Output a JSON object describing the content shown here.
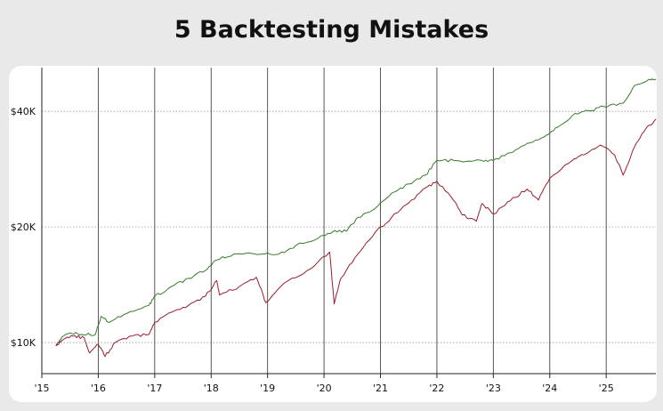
{
  "chart_data": {
    "type": "line",
    "title": "5 Backtesting Mistakes",
    "xlabel": "",
    "ylabel": "",
    "y_scale": "log",
    "ylim": [
      8300,
      52000
    ],
    "xlim": [
      2015.0,
      2025.88
    ],
    "y_ticks": [
      {
        "value": 10000,
        "label": "$10K"
      },
      {
        "value": 20000,
        "label": "$20K"
      },
      {
        "value": 40000,
        "label": "$40K"
      }
    ],
    "x_ticks": [
      {
        "value": 2015.0,
        "label": "'15"
      },
      {
        "value": 2016.0,
        "label": "'16"
      },
      {
        "value": 2017.0,
        "label": "'17"
      },
      {
        "value": 2018.0,
        "label": "'18"
      },
      {
        "value": 2019.0,
        "label": "'19"
      },
      {
        "value": 2020.0,
        "label": "'20"
      },
      {
        "value": 2021.0,
        "label": "'21"
      },
      {
        "value": 2022.0,
        "label": "'22"
      },
      {
        "value": 2023.0,
        "label": "'23"
      },
      {
        "value": 2024.0,
        "label": "'24"
      },
      {
        "value": 2025.0,
        "label": "'25"
      }
    ],
    "grid": {
      "vertical": true,
      "horizontal_dotted": true
    },
    "legend": "none",
    "series": [
      {
        "color": "#3a7a2a",
        "points": [
          [
            2015.25,
            9800
          ],
          [
            2015.35,
            10300
          ],
          [
            2015.5,
            10600
          ],
          [
            2015.7,
            10500
          ],
          [
            2015.95,
            10500
          ],
          [
            2016.05,
            11700
          ],
          [
            2016.2,
            11300
          ],
          [
            2016.5,
            11900
          ],
          [
            2016.9,
            12500
          ],
          [
            2017.0,
            13200
          ],
          [
            2017.3,
            14000
          ],
          [
            2017.6,
            14700
          ],
          [
            2017.9,
            15400
          ],
          [
            2018.1,
            16400
          ],
          [
            2018.4,
            17000
          ],
          [
            2018.9,
            17000
          ],
          [
            2019.2,
            17000
          ],
          [
            2019.5,
            17900
          ],
          [
            2019.9,
            18700
          ],
          [
            2020.15,
            19400
          ],
          [
            2020.4,
            19500
          ],
          [
            2020.6,
            21200
          ],
          [
            2020.9,
            22300
          ],
          [
            2021.2,
            24500
          ],
          [
            2021.5,
            25900
          ],
          [
            2021.8,
            27300
          ],
          [
            2022.0,
            29800
          ],
          [
            2022.3,
            29800
          ],
          [
            2022.8,
            29800
          ],
          [
            2023.0,
            29800
          ],
          [
            2023.3,
            31200
          ],
          [
            2023.6,
            33000
          ],
          [
            2023.9,
            34300
          ],
          [
            2024.1,
            36200
          ],
          [
            2024.4,
            39000
          ],
          [
            2024.7,
            40100
          ],
          [
            2024.95,
            41200
          ],
          [
            2025.3,
            42000
          ],
          [
            2025.5,
            46700
          ],
          [
            2025.75,
            48400
          ],
          [
            2025.88,
            48500
          ]
        ]
      },
      {
        "color": "#9b1b2c",
        "points": [
          [
            2015.25,
            9800
          ],
          [
            2015.35,
            10100
          ],
          [
            2015.55,
            10400
          ],
          [
            2015.75,
            10300
          ],
          [
            2015.85,
            9400
          ],
          [
            2016.0,
            9900
          ],
          [
            2016.12,
            9200
          ],
          [
            2016.3,
            10000
          ],
          [
            2016.6,
            10400
          ],
          [
            2016.9,
            10500
          ],
          [
            2017.0,
            11300
          ],
          [
            2017.3,
            12000
          ],
          [
            2017.6,
            12500
          ],
          [
            2017.9,
            13200
          ],
          [
            2018.1,
            14500
          ],
          [
            2018.15,
            13300
          ],
          [
            2018.5,
            14000
          ],
          [
            2018.8,
            14800
          ],
          [
            2018.97,
            12700
          ],
          [
            2019.3,
            14300
          ],
          [
            2019.7,
            15400
          ],
          [
            2020.1,
            17200
          ],
          [
            2020.18,
            12600
          ],
          [
            2020.3,
            14700
          ],
          [
            2020.6,
            17000
          ],
          [
            2020.9,
            19300
          ],
          [
            2021.2,
            21200
          ],
          [
            2021.5,
            23100
          ],
          [
            2021.8,
            25300
          ],
          [
            2022.0,
            26300
          ],
          [
            2022.3,
            23400
          ],
          [
            2022.45,
            21500
          ],
          [
            2022.7,
            20700
          ],
          [
            2022.8,
            23000
          ],
          [
            2023.0,
            21600
          ],
          [
            2023.3,
            23400
          ],
          [
            2023.6,
            25100
          ],
          [
            2023.8,
            23500
          ],
          [
            2024.0,
            26800
          ],
          [
            2024.4,
            29800
          ],
          [
            2024.6,
            30800
          ],
          [
            2024.9,
            32700
          ],
          [
            2025.15,
            30800
          ],
          [
            2025.3,
            27300
          ],
          [
            2025.5,
            32300
          ],
          [
            2025.7,
            36000
          ],
          [
            2025.88,
            38200
          ]
        ]
      }
    ]
  }
}
